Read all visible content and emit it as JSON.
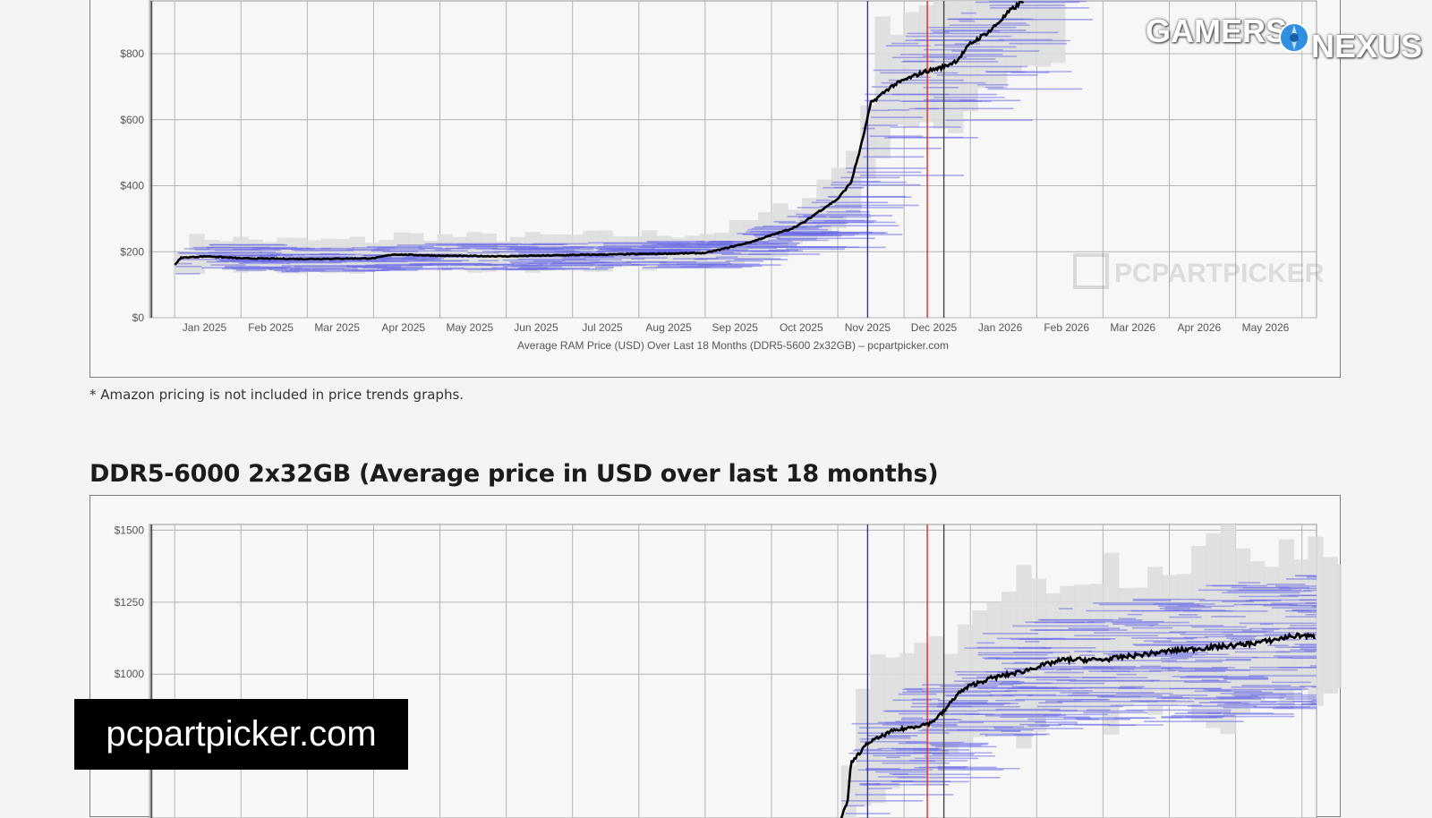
{
  "charts": [
    {
      "type": "line",
      "title": "",
      "x_title": "Average RAM Price (USD) Over Last 18 Months (DDR5-5600 2x32GB) – pcpartpicker.com",
      "x_ticks": [
        "Jan 2025",
        "Feb 2025",
        "Mar 2025",
        "Apr 2025",
        "May 2025",
        "Jun 2025",
        "Jul 2025",
        "Aug 2025",
        "Sep 2025",
        "Oct 2025",
        "Nov 2025",
        "Dec 2025",
        "Jan 2026",
        "Feb 2026",
        "Mar 2026",
        "Apr 2026",
        "May 2026"
      ],
      "y_ticks": [
        "$0",
        "$200",
        "$400",
        "$600",
        "$800"
      ],
      "y_tick_values": [
        0,
        200,
        400,
        600,
        800
      ],
      "ylim": [
        0,
        960
      ],
      "watermark": "PCPARTPICKER",
      "series": [
        {
          "values": [
            [
              0,
              160
            ],
            [
              0.1,
              182
            ],
            [
              0.5,
              186
            ],
            [
              1,
              180
            ],
            [
              2,
              178
            ],
            [
              3,
              180
            ],
            [
              3.3,
              192
            ],
            [
              4,
              188
            ],
            [
              5,
              186
            ],
            [
              6,
              190
            ],
            [
              7,
              193
            ],
            [
              8,
              196
            ],
            [
              8.3,
              210
            ],
            [
              8.7,
              230
            ],
            [
              9,
              250
            ],
            [
              9.3,
              270
            ],
            [
              9.5,
              290
            ],
            [
              9.7,
              320
            ],
            [
              10,
              360
            ],
            [
              10.2,
              410
            ],
            [
              10.35,
              520
            ],
            [
              10.5,
              650
            ],
            [
              10.8,
              700
            ],
            [
              11,
              720
            ],
            [
              11.3,
              745
            ],
            [
              11.6,
              760
            ],
            [
              11.8,
              780
            ],
            [
              12,
              830
            ],
            [
              12.3,
              870
            ],
            [
              12.6,
              930
            ],
            [
              12.8,
              960
            ]
          ]
        }
      ],
      "markers": [
        {
          "color": "#2b2be0",
          "x": 10.45
        },
        {
          "color": "#e02b2b",
          "x": 11.35
        },
        {
          "color": "#444444",
          "x": 11.6
        },
        {
          "color": "#555555",
          "x": -0.35
        }
      ]
    },
    {
      "type": "line",
      "title": "",
      "x_ticks": [],
      "y_ticks": [
        "$1500",
        "$1250",
        "$1000"
      ],
      "y_tick_values": [
        1500,
        1250,
        1000
      ],
      "ylim": [
        500,
        1520
      ],
      "series": [
        {
          "values": [
            [
              10.05,
              500
            ],
            [
              10.15,
              560
            ],
            [
              10.2,
              690
            ],
            [
              10.45,
              760
            ],
            [
              10.8,
              800
            ],
            [
              11.2,
              820
            ],
            [
              11.4,
              830
            ],
            [
              11.6,
              870
            ],
            [
              11.8,
              930
            ],
            [
              12,
              960
            ],
            [
              12.3,
              985
            ],
            [
              12.8,
              1010
            ],
            [
              13,
              1025
            ],
            [
              13.4,
              1050
            ],
            [
              14,
              1050
            ],
            [
              14.5,
              1065
            ],
            [
              15,
              1080
            ],
            [
              15.5,
              1090
            ],
            [
              16,
              1100
            ],
            [
              16.5,
              1115
            ],
            [
              16.8,
              1130
            ],
            [
              17,
              1135
            ],
            [
              17.2,
              1128
            ]
          ]
        }
      ],
      "markers": [
        {
          "color": "#2b2be0",
          "x": 10.45
        },
        {
          "color": "#e02b2b",
          "x": 11.35
        },
        {
          "color": "#444444",
          "x": 11.6
        },
        {
          "color": "#555555",
          "x": -0.35
        }
      ]
    }
  ],
  "footnote": "* Amazon pricing is not included in price trends graphs.",
  "section_title": "DDR5-6000 2x32GB (Average price in USD over last 18 months)",
  "caption": "pcpartpicker.com",
  "logo": {
    "word1": "GAMERS",
    "word2": "NEXUS"
  },
  "colors": {
    "price_line": "#000000",
    "retailer_band": "#6a6ae6",
    "range_fill": "#dcdcdc",
    "grid": "#b4b4b4"
  }
}
